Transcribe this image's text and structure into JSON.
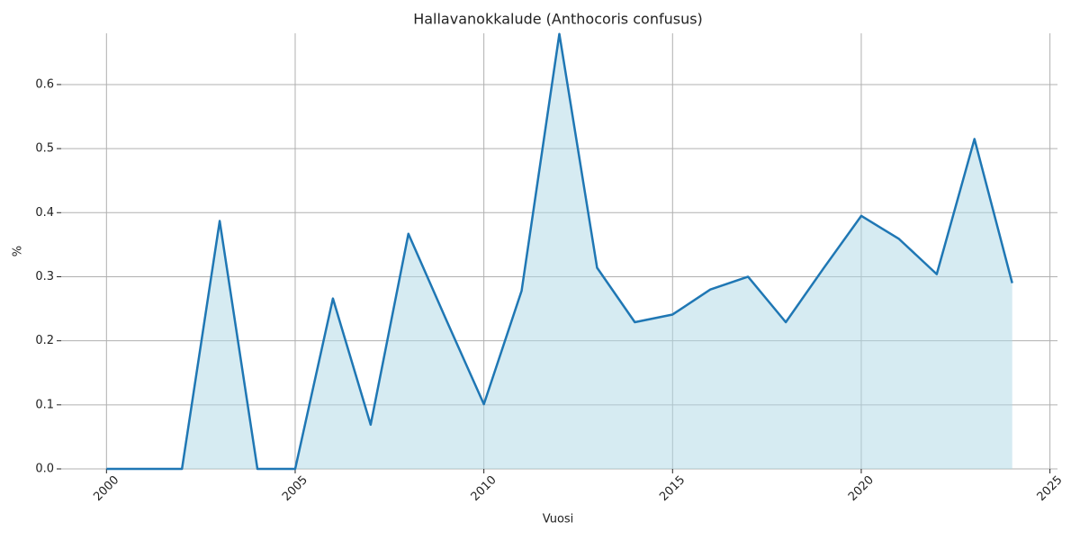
{
  "chart_data": {
    "type": "line",
    "title": "Hallavanokkalude (Anthocoris confusus)",
    "x_label": "Vuosi",
    "y_label": "%",
    "x": [
      2000,
      2001,
      2002,
      2003,
      2004,
      2005,
      2006,
      2007,
      2008,
      2009,
      2010,
      2011,
      2012,
      2013,
      2014,
      2015,
      2016,
      2017,
      2018,
      2019,
      2020,
      2021,
      2022,
      2023,
      2024
    ],
    "series": [
      {
        "name": "Hallavanokkalude (Anthocoris confusus)",
        "color": "#1f77b4",
        "fill_color": "#add8e6",
        "values": [
          0,
          0,
          0,
          0.387,
          0,
          0,
          0.266,
          0.069,
          0.367,
          0.233,
          0.101,
          0.278,
          0.679,
          0.314,
          0.229,
          0.241,
          0.28,
          0.3,
          0.229,
          0.313,
          0.395,
          0.359,
          0.304,
          0.515,
          0.29
        ]
      }
    ],
    "xlim": [
      1998.8,
      2025.2
    ],
    "ylim": [
      0,
      0.68
    ],
    "xticks": [
      2000,
      2005,
      2010,
      2015,
      2020,
      2025
    ],
    "yticks": [
      {
        "value": 0,
        "label": "0.0"
      },
      0.1,
      0.2,
      0.3,
      0.4,
      0.5,
      0.6
    ],
    "grid": true
  }
}
